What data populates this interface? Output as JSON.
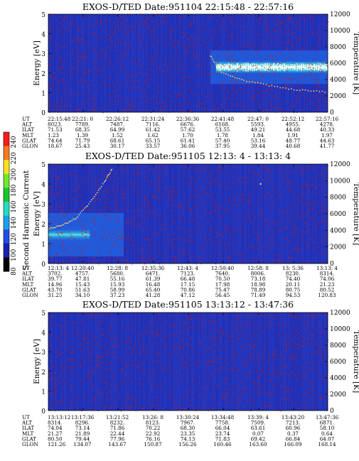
{
  "colors": {
    "background_plasma": "#2233bb",
    "noise_dot": "#c01a1a",
    "band_core": "#ffffff",
    "band_mid": "#5fe0d8",
    "band_outer": "#2a9fe0",
    "band_edge": "#1f5fe0",
    "temperature_trace": "#f0d070"
  },
  "colorbar": {
    "label": "Second Harmonic Current",
    "ticks": [
      "240",
      "220",
      "200",
      "180",
      "160",
      "140",
      "120",
      "100",
      "80"
    ],
    "stops": [
      "#ff1a1a",
      "#ff7a1a",
      "#ffe21a",
      "#6eea2a",
      "#18c828",
      "#1ee0c0",
      "#18a0f0",
      "#1850e8",
      "#1a1fb0",
      "#000000"
    ]
  },
  "chart_data": [
    {
      "type": "heatmap",
      "title": "EXOS-D/TED   Date:951104  22:15:48 - 22:57:16",
      "ylabel": "Energy [eV]",
      "y2label": "Temperature [K]",
      "ylim": [
        0,
        5
      ],
      "y2lim": [
        0,
        12000
      ],
      "y_ticks": [
        "0",
        "1",
        "2",
        "3",
        "4",
        "5"
      ],
      "y2_ticks": [
        "0",
        "2000",
        "4000",
        "6000",
        "8000",
        "10000",
        "12000"
      ],
      "features": {
        "band": {
          "start_frac": 0.58,
          "end_frac": 1.0,
          "center_ev": 2.3,
          "half_width_ev": 0.35,
          "intensity": "high"
        },
        "temperature": [
          [
            0.58,
            6900
          ],
          [
            0.62,
            4800
          ],
          [
            0.7,
            3900
          ],
          [
            0.8,
            3200
          ],
          [
            0.9,
            2700
          ],
          [
            1.0,
            2500
          ]
        ]
      },
      "table": {
        "labels": [
          "UT",
          "ALT",
          "ILAT",
          "MLT",
          "GLAT",
          "GLON"
        ],
        "columns": [
          [
            "22:15:48",
            "8023.",
            "71.53",
            "1.23",
            "74.64",
            "18.67"
          ],
          [
            "22:21: 0",
            "7789.",
            "68.35",
            "1.39",
            "71.79",
            "25.43"
          ],
          [
            "22:26:12",
            "7487.",
            "64.99",
            "1.52",
            "68.61",
            "30.17"
          ],
          [
            "22:31:24",
            "7116.",
            "61.42",
            "1.62",
            "65.15",
            "33.57"
          ],
          [
            "22:36:36",
            "6676.",
            "57.62",
            "1.70",
            "61.41",
            "36.06"
          ],
          [
            "22:41:48",
            "6168.",
            "53.55",
            "1.78",
            "57.40",
            "37.95"
          ],
          [
            "22:47: 0",
            "5593.",
            "49.21",
            "1.84",
            "53.16",
            "39.44"
          ],
          [
            "22:52:12",
            "4955.",
            "44.68",
            "1.91",
            "48.77",
            "40.68"
          ],
          [
            "22:57:16",
            "4278.",
            "40.33",
            "1.97",
            "44.63",
            "41.77"
          ]
        ]
      }
    },
    {
      "type": "heatmap",
      "title": "EXOS-D/TED   Date:951105  12:13: 4 - 13:13: 4",
      "ylabel": "Energy [eV]",
      "y2label": "Temperature [K]",
      "ylim": [
        0,
        5
      ],
      "y2lim": [
        0,
        12000
      ],
      "y_ticks": [
        "0",
        "1",
        "2",
        "3",
        "4",
        "5"
      ],
      "y2_ticks": [
        "0",
        "2000",
        "4000",
        "6000",
        "8000",
        "10000",
        "12000"
      ],
      "features": {
        "band": {
          "start_frac": 0.0,
          "end_frac": 0.27,
          "center_ev": 1.45,
          "half_width_ev": 0.45,
          "intensity": "medium"
        },
        "temperature": [
          [
            0.0,
            4200
          ],
          [
            0.05,
            4600
          ],
          [
            0.1,
            5500
          ],
          [
            0.15,
            7400
          ],
          [
            0.2,
            9800
          ],
          [
            0.23,
            11500
          ]
        ]
      },
      "table": {
        "labels": [
          "UT",
          "ALT",
          "ILAT",
          "MLT",
          "GLAT",
          "GLON"
        ],
        "columns": [
          [
            "12:13: 4",
            "3702.",
            "39.77",
            "14.96",
            "43.70",
            "31.25"
          ],
          [
            "12:20:40",
            "4757.",
            "47.81",
            "15.43",
            "51.63",
            "34.10"
          ],
          [
            "12:28: 8",
            "5680.",
            "55.16",
            "15.93",
            "58.99",
            "37.23"
          ],
          [
            "12:35:36",
            "6471.",
            "61.39",
            "16.48",
            "65.40",
            "41.28"
          ],
          [
            "12:43: 4",
            "7123.",
            "66.48",
            "17.15",
            "70.86",
            "47.12"
          ],
          [
            "12:50:40",
            "7640.",
            "70.50",
            "17.98",
            "75.47",
            "56.45"
          ],
          [
            "12:58: 8",
            "8006.",
            "73.18",
            "18.98",
            "78.89",
            "71.49"
          ],
          [
            "13: 5:36",
            "8230.",
            "74.40",
            "20.11",
            "80.75",
            "94.53"
          ],
          [
            "13:13: 4",
            "8314.",
            "74.06",
            "21.23",
            "80.52",
            "120.83"
          ]
        ]
      }
    },
    {
      "type": "heatmap",
      "title": "EXOS-D/TED   Date:951105  13:13:12 - 13:47:36",
      "ylabel": "Energy [eV]",
      "y2label": "Temperature [K]",
      "ylim": [
        0,
        5
      ],
      "y2lim": [
        0,
        12000
      ],
      "y_ticks": [
        "0",
        "1",
        "2",
        "3",
        "4",
        "5"
      ],
      "y2_ticks": [
        "0",
        "2000",
        "4000",
        "6000",
        "8000",
        "10000",
        "12000"
      ],
      "features": {
        "band": null,
        "temperature": []
      },
      "table": {
        "labels": [
          "UT",
          "ALT",
          "ILAT",
          "MLT",
          "GLAT",
          "GLON"
        ],
        "columns": [
          [
            "13:13:12",
            "8314.",
            "74.04",
            "21.27",
            "80.50",
            "121.26"
          ],
          [
            "13:17:36",
            "8296.",
            "73.14",
            "21.89",
            "79.44",
            "134.07"
          ],
          [
            "13:21:52",
            "8232.",
            "71.86",
            "22.44",
            "77.96",
            "143.67"
          ],
          [
            "13:26: 8",
            "8123.",
            "70.22",
            "22.92",
            "76.16",
            "150.87"
          ],
          [
            "13:30:24",
            "7967.",
            "68.30",
            "23.35",
            "74.13",
            "156.26"
          ],
          [
            "13:34:48",
            "7758.",
            "66.04",
            "23.74",
            "71.83",
            "160.46"
          ],
          [
            "13:39: 4",
            "7509.",
            "63.61",
            "0.07",
            "69.42",
            "163.60"
          ],
          [
            "13:43:20",
            "7213.",
            "60.96",
            "0.37",
            "66.84",
            "166.09"
          ],
          [
            "13:47:36",
            "6871.",
            "58.10",
            "0.64",
            "64.07",
            "168.14"
          ]
        ]
      }
    }
  ]
}
